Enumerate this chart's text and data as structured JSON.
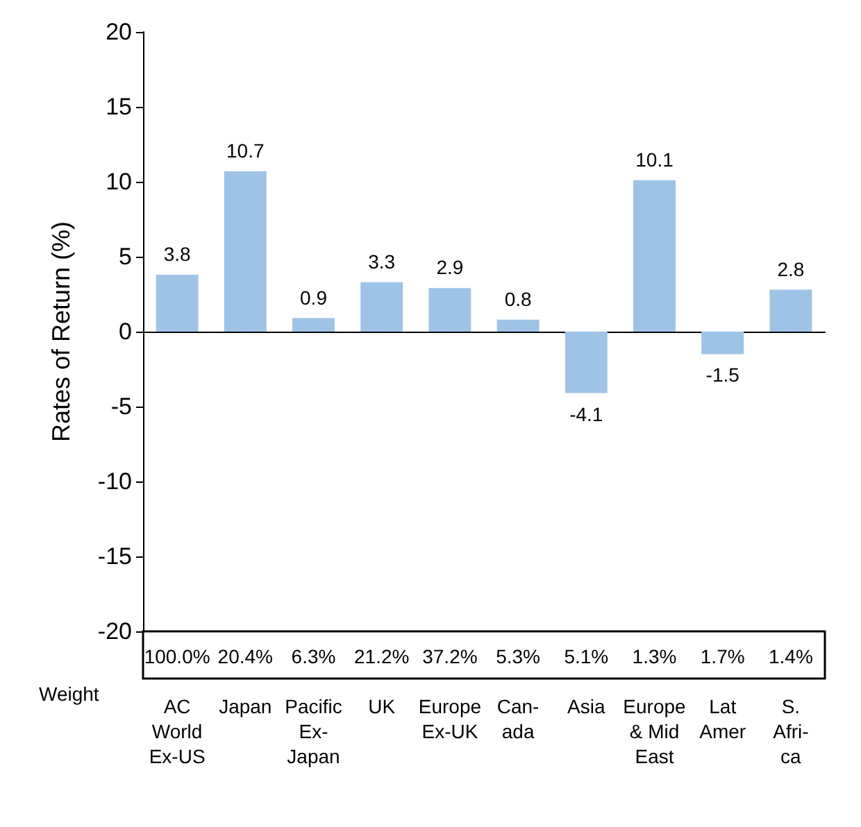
{
  "chart_data": {
    "type": "bar",
    "ylabel": "Rates of Return (%)",
    "categories": [
      "AC\nWorld\nEx-US",
      "Japan",
      "Pacific\nEx-\nJapan",
      "UK",
      "Europe\nEx-UK",
      "Can-\nada",
      "Asia",
      "Europe\n& Mid\nEast",
      "Lat\nAmer",
      "S.\nAfri-\nca"
    ],
    "values": [
      3.8,
      10.7,
      0.9,
      3.3,
      2.9,
      0.8,
      -4.1,
      10.1,
      -1.5,
      2.8
    ],
    "color": "#9dc3e6",
    "data_labels": true,
    "ylim": [
      -20,
      20
    ],
    "yticks": [
      -20,
      -15,
      -10,
      -5,
      0,
      5,
      10,
      15,
      20
    ],
    "annotations": [
      "Weight",
      "100.0%",
      "20.4%",
      "6.3%",
      "21.2%",
      "37.2%",
      "5.3%",
      "5.1%",
      "1.3%",
      "1.7%",
      "1.4%"
    ]
  }
}
